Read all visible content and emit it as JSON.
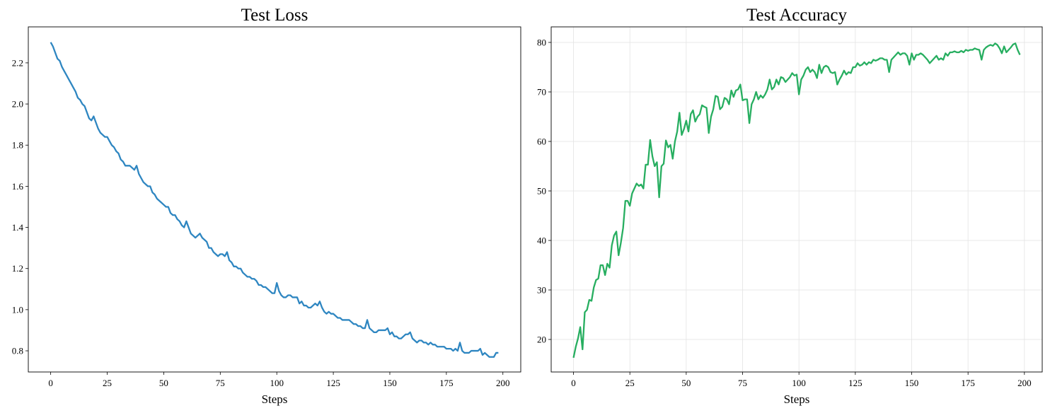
{
  "chart_data": [
    {
      "type": "line",
      "title": "Test Loss",
      "xlabel": "Steps",
      "color": "#2e86c1",
      "grid": false,
      "xlim": [
        -9.9,
        207.9
      ],
      "ylim": [
        0.697,
        2.375
      ],
      "xticks": [
        0,
        25,
        50,
        75,
        100,
        125,
        150,
        175,
        200
      ],
      "yticks": [
        0.8,
        {
          "value": 1,
          "label": "1.0"
        },
        1.2,
        1.4,
        1.6,
        1.8,
        {
          "value": 2,
          "label": "2.0"
        },
        2.2
      ],
      "x": [
        0,
        1,
        2,
        3,
        4,
        5,
        6,
        7,
        8,
        9,
        10,
        11,
        12,
        13,
        14,
        15,
        16,
        17,
        18,
        19,
        20,
        21,
        22,
        23,
        24,
        25,
        26,
        27,
        28,
        29,
        30,
        31,
        32,
        33,
        34,
        35,
        36,
        37,
        38,
        39,
        40,
        41,
        42,
        43,
        44,
        45,
        46,
        47,
        48,
        49,
        50,
        51,
        52,
        53,
        54,
        55,
        56,
        57,
        58,
        59,
        60,
        61,
        62,
        63,
        64,
        65,
        66,
        67,
        68,
        69,
        70,
        71,
        72,
        73,
        74,
        75,
        76,
        77,
        78,
        79,
        80,
        81,
        82,
        83,
        84,
        85,
        86,
        87,
        88,
        89,
        90,
        91,
        92,
        93,
        94,
        95,
        96,
        97,
        98,
        99,
        100,
        101,
        102,
        103,
        104,
        105,
        106,
        107,
        108,
        109,
        110,
        111,
        112,
        113,
        114,
        115,
        116,
        117,
        118,
        119,
        120,
        121,
        122,
        123,
        124,
        125,
        126,
        127,
        128,
        129,
        130,
        131,
        132,
        133,
        134,
        135,
        136,
        137,
        138,
        139,
        140,
        141,
        142,
        143,
        144,
        145,
        146,
        147,
        148,
        149,
        150,
        151,
        152,
        153,
        154,
        155,
        156,
        157,
        158,
        159,
        160,
        161,
        162,
        163,
        164,
        165,
        166,
        167,
        168,
        169,
        170,
        171,
        172,
        173,
        174,
        175,
        176,
        177,
        178,
        179,
        180,
        181,
        182,
        183,
        184,
        185,
        186,
        187,
        188,
        189,
        190,
        191,
        192,
        193,
        194,
        195,
        196,
        197,
        198
      ],
      "values": [
        2.3,
        2.28,
        2.25,
        2.22,
        2.21,
        2.18,
        2.16,
        2.14,
        2.12,
        2.1,
        2.08,
        2.06,
        2.03,
        2.02,
        2.0,
        1.99,
        1.96,
        1.93,
        1.92,
        1.94,
        1.91,
        1.88,
        1.86,
        1.85,
        1.84,
        1.84,
        1.82,
        1.8,
        1.79,
        1.77,
        1.76,
        1.73,
        1.72,
        1.7,
        1.7,
        1.7,
        1.69,
        1.68,
        1.7,
        1.66,
        1.64,
        1.62,
        1.61,
        1.6,
        1.6,
        1.57,
        1.56,
        1.54,
        1.53,
        1.52,
        1.51,
        1.5,
        1.5,
        1.47,
        1.46,
        1.46,
        1.44,
        1.43,
        1.41,
        1.4,
        1.43,
        1.4,
        1.37,
        1.36,
        1.35,
        1.36,
        1.37,
        1.35,
        1.34,
        1.33,
        1.3,
        1.3,
        1.28,
        1.27,
        1.26,
        1.27,
        1.27,
        1.26,
        1.28,
        1.24,
        1.23,
        1.21,
        1.21,
        1.2,
        1.2,
        1.18,
        1.17,
        1.16,
        1.16,
        1.15,
        1.15,
        1.14,
        1.12,
        1.12,
        1.11,
        1.11,
        1.1,
        1.09,
        1.08,
        1.08,
        1.13,
        1.09,
        1.07,
        1.06,
        1.06,
        1.07,
        1.07,
        1.06,
        1.06,
        1.06,
        1.03,
        1.04,
        1.02,
        1.02,
        1.01,
        1.01,
        1.02,
        1.03,
        1.02,
        1.04,
        1.01,
        0.99,
        0.98,
        0.99,
        0.98,
        0.98,
        0.97,
        0.96,
        0.96,
        0.95,
        0.95,
        0.95,
        0.95,
        0.94,
        0.93,
        0.93,
        0.92,
        0.92,
        0.91,
        0.91,
        0.95,
        0.91,
        0.9,
        0.89,
        0.89,
        0.9,
        0.9,
        0.9,
        0.9,
        0.91,
        0.88,
        0.89,
        0.87,
        0.87,
        0.86,
        0.86,
        0.87,
        0.88,
        0.88,
        0.89,
        0.86,
        0.85,
        0.84,
        0.85,
        0.85,
        0.84,
        0.84,
        0.83,
        0.84,
        0.83,
        0.83,
        0.82,
        0.82,
        0.82,
        0.82,
        0.81,
        0.81,
        0.81,
        0.8,
        0.81,
        0.8,
        0.84,
        0.8,
        0.79,
        0.79,
        0.79,
        0.8,
        0.8,
        0.8,
        0.8,
        0.81,
        0.78,
        0.79,
        0.78,
        0.77,
        0.77,
        0.77,
        0.79,
        0.79
      ]
    },
    {
      "type": "line",
      "title": "Test Accuracy",
      "xlabel": "Steps",
      "color": "#27ae60",
      "grid": true,
      "xlim": [
        -9.9,
        207.9
      ],
      "ylim": [
        13.43,
        83.14
      ],
      "xticks": [
        0,
        25,
        50,
        75,
        100,
        125,
        150,
        175,
        200
      ],
      "yticks": [
        20,
        30,
        40,
        50,
        60,
        70,
        80
      ],
      "x": [
        0,
        1,
        2,
        3,
        4,
        5,
        6,
        7,
        8,
        9,
        10,
        11,
        12,
        13,
        14,
        15,
        16,
        17,
        18,
        19,
        20,
        21,
        22,
        23,
        24,
        25,
        26,
        27,
        28,
        29,
        30,
        31,
        32,
        33,
        34,
        35,
        36,
        37,
        38,
        39,
        40,
        41,
        42,
        43,
        44,
        45,
        46,
        47,
        48,
        49,
        50,
        51,
        52,
        53,
        54,
        55,
        56,
        57,
        58,
        59,
        60,
        61,
        62,
        63,
        64,
        65,
        66,
        67,
        68,
        69,
        70,
        71,
        72,
        73,
        74,
        75,
        76,
        77,
        78,
        79,
        80,
        81,
        82,
        83,
        84,
        85,
        86,
        87,
        88,
        89,
        90,
        91,
        92,
        93,
        94,
        95,
        96,
        97,
        98,
        99,
        100,
        101,
        102,
        103,
        104,
        105,
        106,
        107,
        108,
        109,
        110,
        111,
        112,
        113,
        114,
        115,
        116,
        117,
        118,
        119,
        120,
        121,
        122,
        123,
        124,
        125,
        126,
        127,
        128,
        129,
        130,
        131,
        132,
        133,
        134,
        135,
        136,
        137,
        138,
        139,
        140,
        141,
        142,
        143,
        144,
        145,
        146,
        147,
        148,
        149,
        150,
        151,
        152,
        153,
        154,
        155,
        156,
        157,
        158,
        159,
        160,
        161,
        162,
        163,
        164,
        165,
        166,
        167,
        168,
        169,
        170,
        171,
        172,
        173,
        174,
        175,
        176,
        177,
        178,
        179,
        180,
        181,
        182,
        183,
        184,
        185,
        186,
        187,
        188,
        189,
        190,
        191,
        192,
        193,
        194,
        195,
        196,
        197,
        198
      ],
      "values": [
        16.3,
        18.5,
        20.2,
        22.5,
        18.0,
        25.5,
        26.0,
        28.0,
        27.8,
        30.5,
        32.0,
        32.3,
        35.0,
        35.0,
        33.0,
        35.3,
        34.5,
        39.0,
        41.0,
        41.8,
        37.0,
        39.5,
        42.5,
        48.0,
        48.0,
        47.0,
        49.5,
        50.5,
        51.5,
        51.0,
        51.3,
        50.5,
        55.3,
        55.3,
        60.3,
        57.0,
        55.0,
        55.8,
        48.7,
        55.0,
        55.5,
        60.2,
        58.8,
        59.3,
        56.5,
        60.0,
        62.0,
        65.8,
        61.3,
        62.5,
        64.2,
        62.0,
        65.5,
        66.3,
        64.0,
        65.0,
        65.5,
        67.3,
        67.0,
        66.8,
        61.7,
        65.0,
        66.5,
        69.2,
        69.0,
        66.5,
        67.0,
        68.8,
        68.5,
        67.5,
        70.3,
        69.0,
        70.3,
        70.5,
        71.5,
        68.3,
        68.5,
        68.5,
        63.7,
        67.5,
        68.5,
        70.0,
        68.5,
        69.3,
        68.8,
        69.5,
        70.5,
        72.5,
        70.5,
        71.0,
        72.5,
        71.5,
        73.0,
        72.8,
        72.0,
        72.5,
        73.0,
        73.8,
        73.3,
        73.5,
        69.5,
        72.5,
        73.3,
        74.5,
        75.0,
        74.0,
        74.5,
        74.0,
        72.8,
        75.5,
        73.8,
        75.0,
        75.3,
        75.0,
        74.0,
        73.8,
        74.0,
        71.5,
        72.5,
        73.3,
        74.3,
        73.5,
        74.0,
        73.8,
        75.0,
        75.0,
        75.8,
        75.3,
        75.5,
        76.0,
        75.5,
        76.0,
        75.8,
        76.5,
        76.3,
        76.5,
        76.8,
        76.8,
        76.5,
        76.5,
        74.0,
        76.5,
        77.0,
        77.5,
        78.0,
        77.5,
        77.8,
        77.8,
        77.3,
        75.5,
        77.8,
        76.5,
        77.5,
        77.5,
        77.8,
        77.5,
        77.0,
        76.5,
        75.8,
        76.3,
        76.8,
        77.3,
        76.5,
        76.8,
        76.5,
        77.8,
        77.3,
        78.0,
        78.0,
        78.2,
        78.0,
        78.0,
        78.3,
        78.0,
        78.5,
        78.3,
        78.5,
        78.5,
        78.8,
        78.6,
        78.5,
        76.5,
        78.5,
        79.0,
        79.3,
        79.5,
        79.3,
        79.8,
        79.5,
        78.8,
        77.8,
        79.2,
        78.0,
        78.5,
        79.0,
        79.6,
        79.8,
        78.5,
        77.5
      ]
    }
  ]
}
